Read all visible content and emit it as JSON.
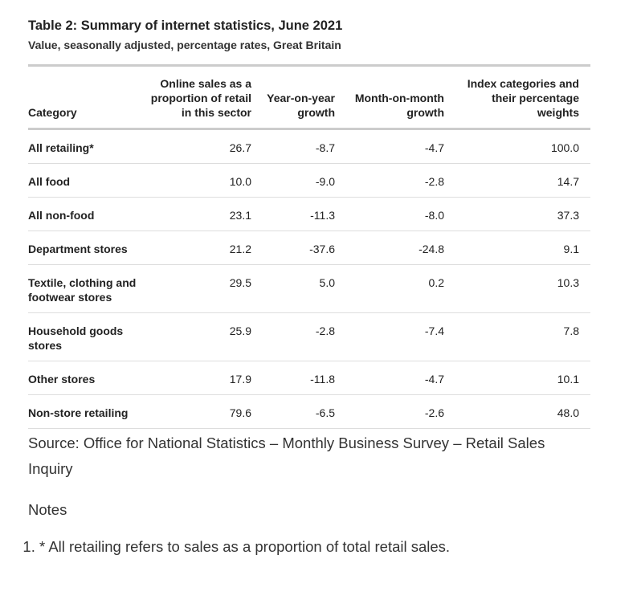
{
  "title": "Table 2: Summary of internet statistics, June 2021",
  "subtitle": "Value, seasonally adjusted, percentage rates, Great Britain",
  "columns": [
    "Category",
    "Online sales as a proportion of retail in this sector",
    "Year-on-year growth",
    "Month-on-month growth",
    "Index categories and their percentage weights"
  ],
  "rows": [
    [
      "All retailing*",
      "26.7",
      "-8.7",
      "-4.7",
      "100.0"
    ],
    [
      "All food",
      "10.0",
      "-9.0",
      "-2.8",
      "14.7"
    ],
    [
      "All non-food",
      "23.1",
      "-11.3",
      "-8.0",
      "37.3"
    ],
    [
      "Department stores",
      "21.2",
      "-37.6",
      "-24.8",
      "9.1"
    ],
    [
      "Textile, clothing and footwear stores",
      "29.5",
      "5.0",
      "0.2",
      "10.3"
    ],
    [
      "Household goods stores",
      "25.9",
      "-2.8",
      "-7.4",
      "7.8"
    ],
    [
      "Other stores",
      "17.9",
      "-11.8",
      "-4.7",
      "10.1"
    ],
    [
      "Non-store retailing",
      "79.6",
      "-6.5",
      "-2.6",
      "48.0"
    ]
  ],
  "source": "Source: Office for National Statistics – Monthly Business Survey – Retail Sales Inquiry",
  "notes_heading": "Notes",
  "notes": [
    "* All retailing refers to sales as a proportion of total retail sales."
  ]
}
